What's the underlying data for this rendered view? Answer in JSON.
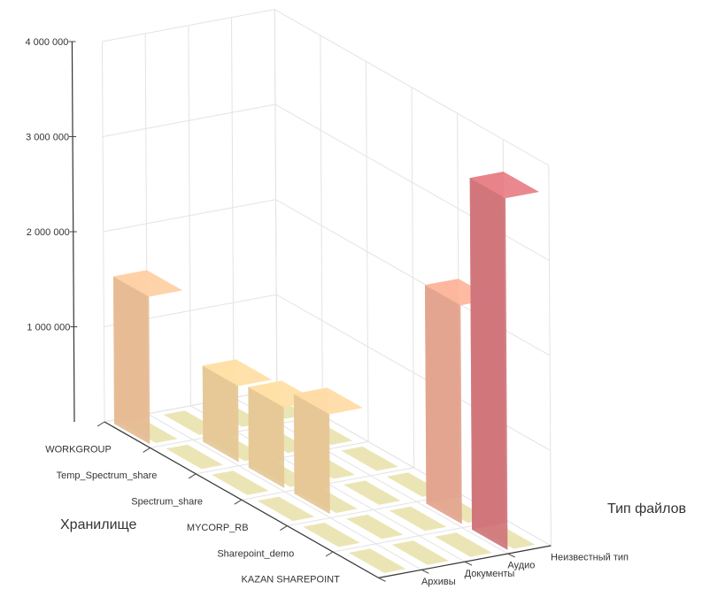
{
  "chart_data": {
    "type": "bar3d",
    "title": "",
    "xlabel": "Хранилище",
    "ylabel": "Тип файлов",
    "zlabel": "",
    "x_categories": [
      "WORKGROUP",
      "Temp_Spectrum_share",
      "Spectrum_share",
      "MYCORP_RB",
      "Sharepoint_demo",
      "KAZAN SHAREPOINT"
    ],
    "y_categories": [
      "Архивы",
      "Документы",
      "Аудио",
      "Неизвестный тип"
    ],
    "z_ticks": [
      "4 000 000",
      "3 000 000",
      "2 000 000",
      "1 000 000"
    ],
    "z_tick_values": [
      4000000,
      3000000,
      2000000,
      1000000
    ],
    "zlim": [
      0,
      4000000
    ],
    "grid": true,
    "legend": "none",
    "color_scale": [
      "#f2e2a2",
      "#f7d0a0",
      "#f2a497",
      "#d9737e"
    ],
    "bars": [
      {
        "storage": "KAZAN SHAREPOINT",
        "type": "Неизвестный тип",
        "value": 3700000
      },
      {
        "storage": "Sharepoint_demo",
        "type": "Неизвестный тип",
        "value": 2300000
      },
      {
        "storage": "MYCORP_RB",
        "type": "Документы",
        "value": 1050000
      },
      {
        "storage": "WORKGROUP",
        "type": "Архивы",
        "value": 1550000
      },
      {
        "storage": "Spectrum_share",
        "type": "Документы",
        "value": 850000
      },
      {
        "storage": "Temp_Spectrum_share",
        "type": "Документы",
        "value": 800000
      }
    ]
  }
}
